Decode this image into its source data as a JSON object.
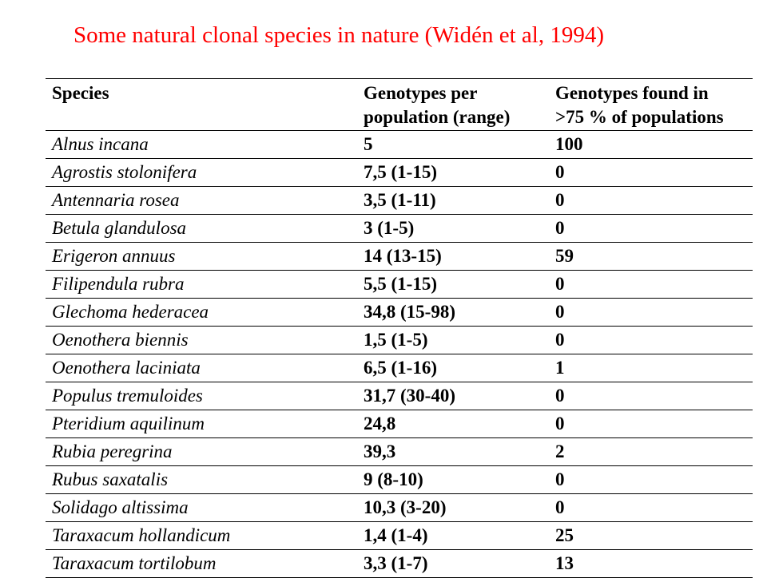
{
  "title": "Some natural clonal species in nature (Widén et al, 1994)",
  "headers": {
    "species": "Species",
    "genotypes_line1": "Genotypes per",
    "genotypes_line2": "population (range)",
    "found_line1": "Genotypes found in",
    "found_line2": ">75 % of populations"
  },
  "rows": [
    {
      "species": "Alnus incana",
      "genotypes": "5",
      "found": "100"
    },
    {
      "species": "Agrostis stolonifera",
      "genotypes": "7,5 (1-15)",
      "found": "0"
    },
    {
      "species": "Antennaria rosea",
      "genotypes": "3,5 (1-11)",
      "found": "0"
    },
    {
      "species": "Betula glandulosa",
      "genotypes": "3 (1-5)",
      "found": "0"
    },
    {
      "species": "Erigeron annuus",
      "genotypes": "14 (13-15)",
      "found": "59"
    },
    {
      "species": "Filipendula rubra",
      "genotypes": "5,5 (1-15)",
      "found": "0"
    },
    {
      "species": "Glechoma hederacea",
      "genotypes": "34,8 (15-98)",
      "found": "0"
    },
    {
      "species": "Oenothera biennis",
      "genotypes": "1,5 (1-5)",
      "found": "0"
    },
    {
      "species": "Oenothera laciniata",
      "genotypes": "6,5 (1-16)",
      "found": "1"
    },
    {
      "species": "Populus tremuloides",
      "genotypes": "31,7 (30-40)",
      "found": "0"
    },
    {
      "species": "Pteridium aquilinum",
      "genotypes": "24,8",
      "found": "0"
    },
    {
      "species": "Rubia peregrina",
      "genotypes": "39,3",
      "found": "2"
    },
    {
      "species": "Rubus saxatalis",
      "genotypes": "9 (8-10)",
      "found": "0"
    },
    {
      "species": "Solidago altissima",
      "genotypes": "10,3 (3-20)",
      "found": "0"
    },
    {
      "species": "Taraxacum hollandicum",
      "genotypes": "1,4 (1-4)",
      "found": "25"
    },
    {
      "species": "Taraxacum tortilobum",
      "genotypes": "3,3 (1-7)",
      "found": "13"
    }
  ],
  "colors": {
    "title": "#ff0000",
    "text": "#000000",
    "background": "#ffffff"
  }
}
